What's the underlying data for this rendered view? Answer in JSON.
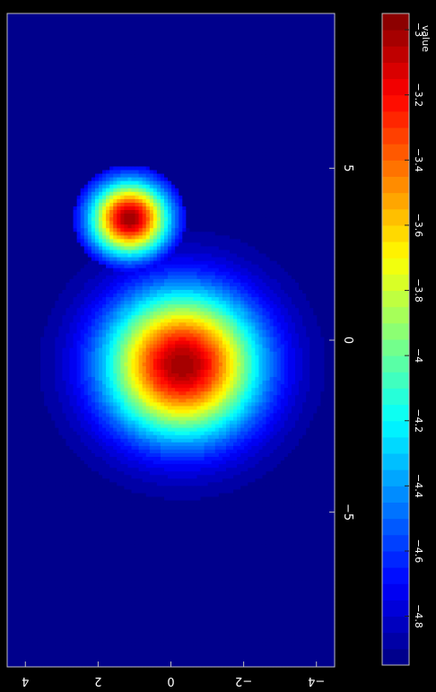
{
  "chart_data": {
    "type": "heatmap",
    "title": "",
    "xlabel": "",
    "ylabel": "",
    "orientation": "rotated 90 degrees clockwise",
    "xlim": [
      -9.5,
      9.5
    ],
    "ylim": [
      -4.5,
      4.5
    ],
    "x_ticks": [
      -5,
      0,
      5
    ],
    "y_ticks": [
      -4,
      -2,
      0,
      2,
      4
    ],
    "x_tick_labels": [
      "−5",
      "0",
      "5"
    ],
    "y_tick_labels": [
      "−4",
      "−2",
      "0",
      "2",
      "4"
    ],
    "background_value": -4.95,
    "sources": [
      {
        "x": -0.7,
        "y": -0.3,
        "peak": -3.0,
        "width": 1.45
      },
      {
        "x": 3.55,
        "y": 1.15,
        "peak": -3.0,
        "width": 0.75,
        "cutoff_radius": 1.55
      }
    ],
    "colorbar": {
      "label": "value",
      "range": [
        -4.95,
        -2.95
      ],
      "ticks": [
        -4.8,
        -4.6,
        -4.4,
        -4.2,
        -4,
        -3.8,
        -3.6,
        -3.4,
        -3.2,
        -3
      ],
      "tick_labels": [
        "−4.8",
        "−4.6",
        "−4.4",
        "−4.2",
        "−4",
        "−3.8",
        "−3.6",
        "−3.4",
        "−3.2",
        "−3"
      ],
      "colormap": "jet",
      "levels": 40
    },
    "grid": false,
    "colors": {
      "frame": "#bdbdbd",
      "text": "#ffffff",
      "background": "#000000"
    }
  }
}
